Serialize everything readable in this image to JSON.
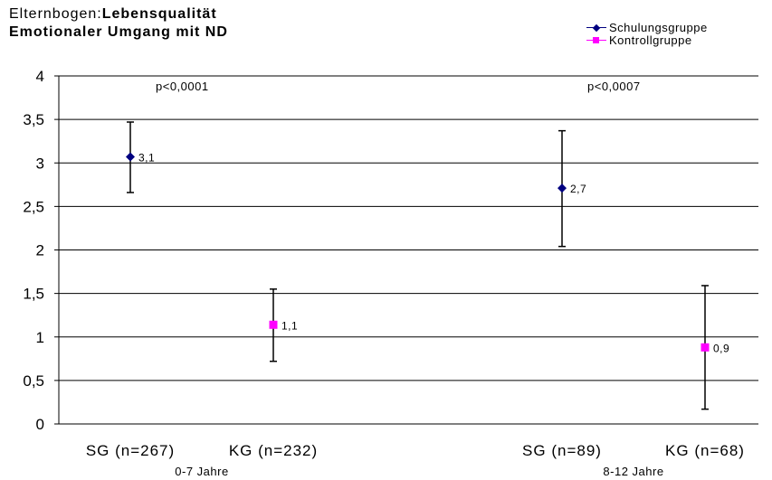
{
  "title": {
    "prefix": "Elternbogen:",
    "bold_part": "Lebensqualität",
    "line2": "Emotionaler Umgang mit ND"
  },
  "legend": [
    {
      "label": "Schulungsgruppe",
      "color": "#000080",
      "marker": "diamond"
    },
    {
      "label": "Kontrollgruppe",
      "color": "#ff00ff",
      "marker": "square"
    }
  ],
  "chart_data": {
    "type": "scatter",
    "ylim": [
      0,
      4
    ],
    "yticks": [
      "0",
      "0,5",
      "1",
      "1,5",
      "2",
      "2,5",
      "3",
      "3,5",
      "4"
    ],
    "grid": true,
    "categories": [
      "SG (n=267)",
      "KG (n=232)",
      "SG (n=89)",
      "KG (n=68)"
    ],
    "groups": [
      {
        "label": "0-7 Jahre",
        "categories": [
          0,
          1
        ],
        "annotation": "p<0,0001"
      },
      {
        "label": "8-12 Jahre",
        "categories": [
          2,
          3
        ],
        "annotation": "p<0,0007"
      }
    ],
    "series": [
      {
        "name": "Schulungsgruppe",
        "color": "#000080",
        "marker": "diamond",
        "points": [
          {
            "category": 0,
            "y": 3.07,
            "label": "3,1",
            "err_low": 2.66,
            "err_high": 3.47
          },
          {
            "category": 2,
            "y": 2.71,
            "label": "2,7",
            "err_low": 2.04,
            "err_high": 3.37
          }
        ]
      },
      {
        "name": "Kontrollgruppe",
        "color": "#ff00ff",
        "marker": "square",
        "points": [
          {
            "category": 1,
            "y": 1.14,
            "label": "1,1",
            "err_low": 0.72,
            "err_high": 1.55
          },
          {
            "category": 3,
            "y": 0.88,
            "label": "0,9",
            "err_low": 0.17,
            "err_high": 1.59
          }
        ]
      }
    ]
  }
}
